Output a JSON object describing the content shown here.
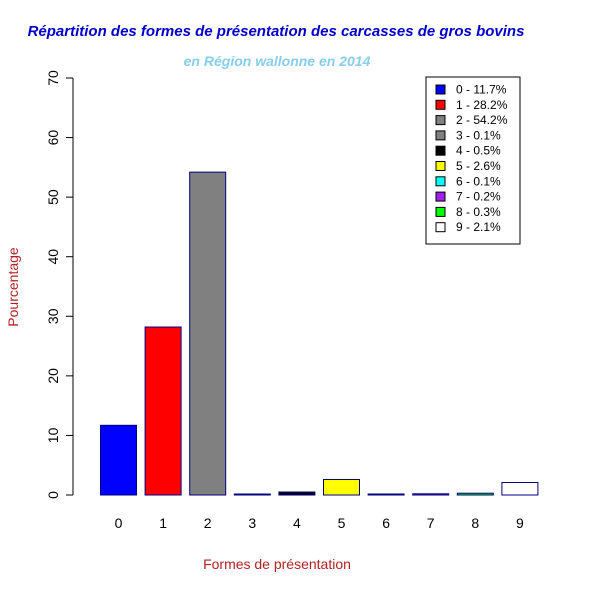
{
  "chart_data": {
    "type": "bar",
    "title": "Répartition des formes de présentation des carcasses de gros bovins",
    "subtitle": "en Région wallonne en 2014",
    "xlabel": "Formes de présentation",
    "ylabel": "Pourcentage",
    "categories": [
      "0",
      "1",
      "2",
      "3",
      "4",
      "5",
      "6",
      "7",
      "8",
      "9"
    ],
    "values": [
      11.7,
      28.2,
      54.2,
      0.1,
      0.5,
      2.6,
      0.1,
      0.2,
      0.3,
      2.1
    ],
    "colors": [
      "#0000ff",
      "#ff0000",
      "#808080",
      "#808080",
      "#000000",
      "#ffff00",
      "#00ffff",
      "#a020f0",
      "#00ff00",
      "#ffffff"
    ],
    "ylim": [
      0,
      70
    ],
    "yticks": [
      "0",
      "10",
      "20",
      "30",
      "40",
      "50",
      "60",
      "70"
    ],
    "legend": {
      "position": "top-right",
      "entries": [
        "0 - 11.7%",
        "1 - 28.2%",
        "2 - 54.2%",
        "3 - 0.1%",
        "4 - 0.5%",
        "5 - 2.6%",
        "6 - 0.1%",
        "7 - 0.2%",
        "8 - 0.3%",
        "9 - 2.1%"
      ]
    },
    "grid": false,
    "title_color": "#0000cd",
    "subtitle_color": "#87ceeb",
    "label_color": "#b22222",
    "bar_border_color": "#000080"
  }
}
